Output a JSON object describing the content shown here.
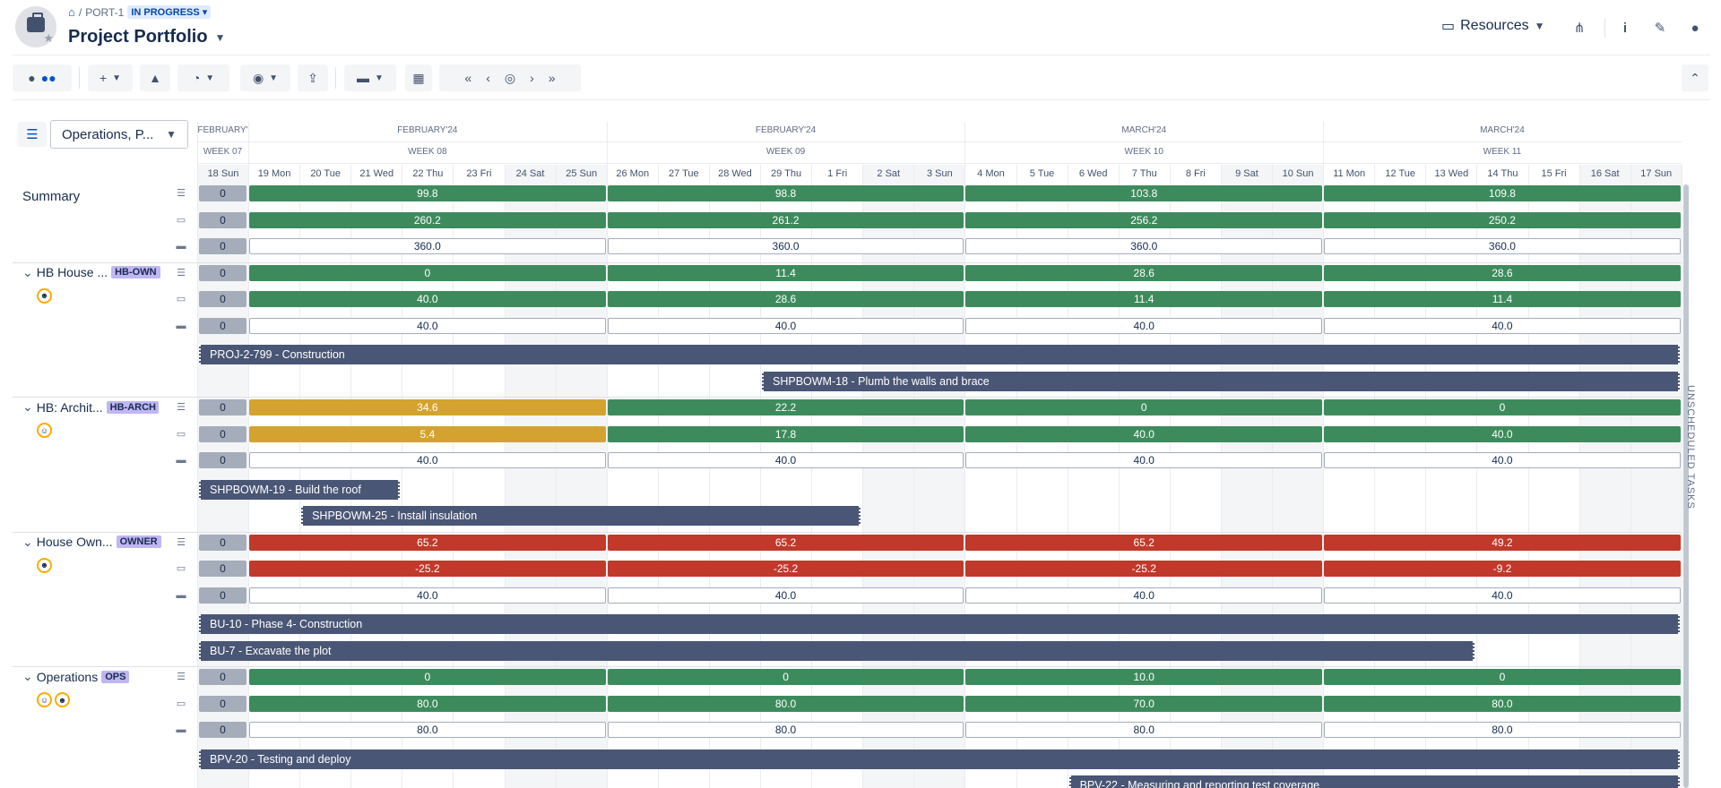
{
  "header": {
    "breadcrumb_key": "PORT-1",
    "status": "IN PROGRESS",
    "title": "Project Portfolio",
    "resources_label": "Resources"
  },
  "filter": {
    "value": "Operations, P..."
  },
  "timeline": {
    "months": [
      "FEBRUARY'",
      "FEBRUARY'24",
      "FEBRUARY'24",
      "MARCH'24",
      "MARCH'24"
    ],
    "weeks": [
      "WEEK 07",
      "WEEK 08",
      "WEEK 09",
      "WEEK 10",
      "WEEK 11"
    ],
    "days": [
      "18 Sun",
      "19 Mon",
      "20 Tue",
      "21 Wed",
      "22 Thu",
      "23 Fri",
      "24 Sat",
      "25 Sun",
      "26 Mon",
      "27 Tue",
      "28 Wed",
      "29 Thu",
      "1 Fri",
      "2 Sat",
      "3 Sun",
      "4 Mon",
      "5 Tue",
      "6 Wed",
      "7 Thu",
      "8 Fri",
      "9 Sat",
      "10 Sun",
      "11 Mon",
      "12 Tue",
      "13 Wed",
      "14 Thu",
      "15 Fri",
      "16 Sat",
      "17 Sun"
    ],
    "unscheduled_label": "UNSCHEDULED TASKS"
  },
  "groups": [
    {
      "name": "Summary",
      "tag": "",
      "avatars": [],
      "metrics": [
        {
          "w0": "0",
          "weeks": [
            {
              "v": "99.8",
              "c": "green"
            },
            {
              "v": "98.8",
              "c": "green"
            },
            {
              "v": "103.8",
              "c": "green"
            },
            {
              "v": "109.8",
              "c": "green"
            }
          ]
        },
        {
          "w0": "0",
          "weeks": [
            {
              "v": "260.2",
              "c": "green"
            },
            {
              "v": "261.2",
              "c": "green"
            },
            {
              "v": "256.2",
              "c": "green"
            },
            {
              "v": "250.2",
              "c": "green"
            }
          ]
        },
        {
          "w0": "0",
          "weeks": [
            {
              "v": "360.0",
              "c": "outline"
            },
            {
              "v": "360.0",
              "c": "outline"
            },
            {
              "v": "360.0",
              "c": "outline"
            },
            {
              "v": "360.0",
              "c": "outline"
            }
          ]
        }
      ],
      "tasks": []
    },
    {
      "name": "HB House ...",
      "tag": "HB-OWN",
      "avatars": [
        "☻"
      ],
      "metrics": [
        {
          "w0": "0",
          "weeks": [
            {
              "v": "0",
              "c": "green"
            },
            {
              "v": "11.4",
              "c": "green"
            },
            {
              "v": "28.6",
              "c": "green"
            },
            {
              "v": "28.6",
              "c": "green"
            }
          ]
        },
        {
          "w0": "0",
          "weeks": [
            {
              "v": "40.0",
              "c": "green"
            },
            {
              "v": "28.6",
              "c": "green"
            },
            {
              "v": "11.4",
              "c": "green"
            },
            {
              "v": "11.4",
              "c": "green"
            }
          ]
        },
        {
          "w0": "0",
          "weeks": [
            {
              "v": "40.0",
              "c": "outline"
            },
            {
              "v": "40.0",
              "c": "outline"
            },
            {
              "v": "40.0",
              "c": "outline"
            },
            {
              "v": "40.0",
              "c": "outline"
            }
          ]
        }
      ],
      "tasks": [
        {
          "label": "PROJ-2-799 - Construction",
          "start": 0,
          "end": 29
        },
        {
          "label": "SHPBOWM-18 - Plumb the walls and brace",
          "start": 11,
          "end": 29
        }
      ]
    },
    {
      "name": "HB: Archit...",
      "tag": "HB-ARCH",
      "avatars": [
        "☺"
      ],
      "metrics": [
        {
          "w0": "0",
          "weeks": [
            {
              "v": "34.6",
              "c": "yellow"
            },
            {
              "v": "22.2",
              "c": "green"
            },
            {
              "v": "0",
              "c": "green"
            },
            {
              "v": "0",
              "c": "green"
            }
          ]
        },
        {
          "w0": "0",
          "weeks": [
            {
              "v": "5.4",
              "c": "yellow"
            },
            {
              "v": "17.8",
              "c": "green"
            },
            {
              "v": "40.0",
              "c": "green"
            },
            {
              "v": "40.0",
              "c": "green"
            }
          ]
        },
        {
          "w0": "0",
          "weeks": [
            {
              "v": "40.0",
              "c": "outline"
            },
            {
              "v": "40.0",
              "c": "outline"
            },
            {
              "v": "40.0",
              "c": "outline"
            },
            {
              "v": "40.0",
              "c": "outline"
            }
          ]
        }
      ],
      "tasks": [
        {
          "label": "SHPBOWM-19 - Build the roof",
          "start": 0,
          "end": 4
        },
        {
          "label": "SHPBOWM-25 - Install insulation",
          "start": 2,
          "end": 13
        }
      ]
    },
    {
      "name": "House Own...",
      "tag": "OWNER",
      "avatars": [
        "☻"
      ],
      "metrics": [
        {
          "w0": "0",
          "weeks": [
            {
              "v": "65.2",
              "c": "red"
            },
            {
              "v": "65.2",
              "c": "red"
            },
            {
              "v": "65.2",
              "c": "red"
            },
            {
              "v": "49.2",
              "c": "red"
            }
          ]
        },
        {
          "w0": "0",
          "weeks": [
            {
              "v": "-25.2",
              "c": "red"
            },
            {
              "v": "-25.2",
              "c": "red"
            },
            {
              "v": "-25.2",
              "c": "red"
            },
            {
              "v": "-9.2",
              "c": "red"
            }
          ]
        },
        {
          "w0": "0",
          "weeks": [
            {
              "v": "40.0",
              "c": "outline"
            },
            {
              "v": "40.0",
              "c": "outline"
            },
            {
              "v": "40.0",
              "c": "outline"
            },
            {
              "v": "40.0",
              "c": "outline"
            }
          ]
        }
      ],
      "tasks": [
        {
          "label": "BU-10 - Phase 4- Construction",
          "start": 0,
          "end": 29
        },
        {
          "label": "BU-7 - Excavate the plot",
          "start": 0,
          "end": 25
        }
      ]
    },
    {
      "name": "Operations",
      "tag": "OPS",
      "avatars": [
        "☺",
        "☻"
      ],
      "metrics": [
        {
          "w0": "0",
          "weeks": [
            {
              "v": "0",
              "c": "green"
            },
            {
              "v": "0",
              "c": "green"
            },
            {
              "v": "10.0",
              "c": "green"
            },
            {
              "v": "0",
              "c": "green"
            }
          ]
        },
        {
          "w0": "0",
          "weeks": [
            {
              "v": "80.0",
              "c": "green"
            },
            {
              "v": "80.0",
              "c": "green"
            },
            {
              "v": "70.0",
              "c": "green"
            },
            {
              "v": "80.0",
              "c": "green"
            }
          ]
        },
        {
          "w0": "0",
          "weeks": [
            {
              "v": "80.0",
              "c": "outline"
            },
            {
              "v": "80.0",
              "c": "outline"
            },
            {
              "v": "80.0",
              "c": "outline"
            },
            {
              "v": "80.0",
              "c": "outline"
            }
          ]
        }
      ],
      "tasks": [
        {
          "label": "BPV-20 - Testing and deploy",
          "start": 0,
          "end": 29
        },
        {
          "label": "BPV-22 - Measuring and reporting test coverage",
          "start": 17,
          "end": 29
        }
      ]
    }
  ]
}
